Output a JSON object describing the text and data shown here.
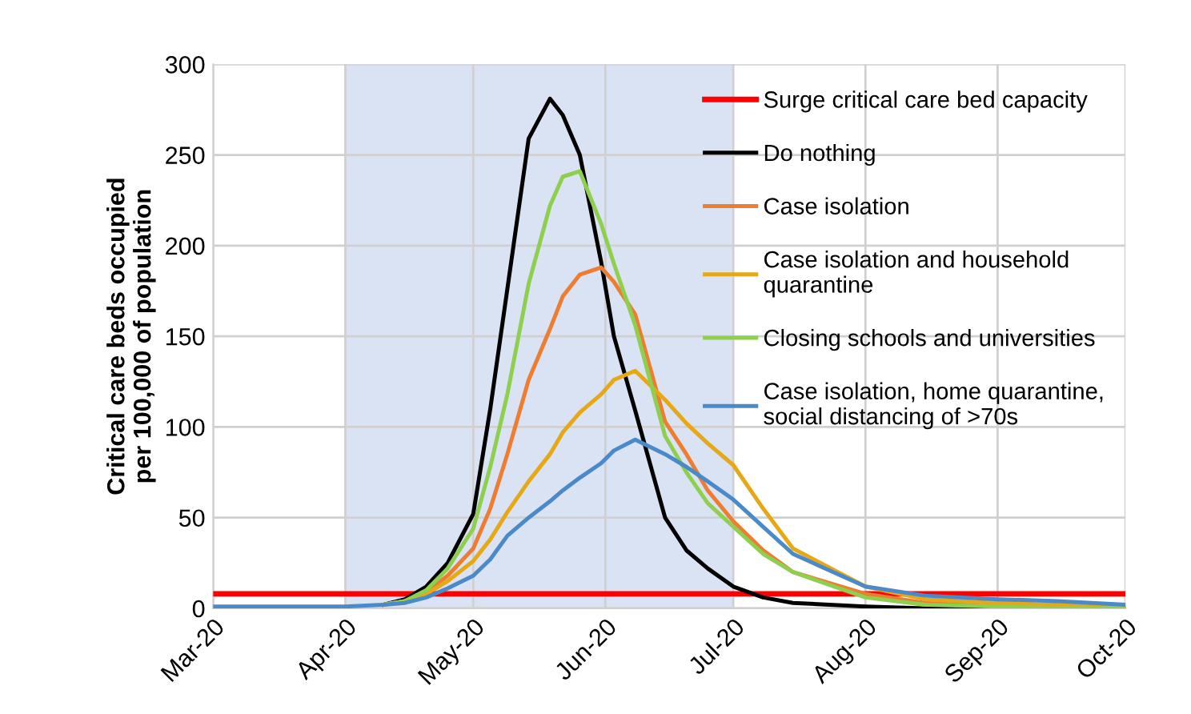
{
  "chart_data": {
    "type": "line",
    "ylabel": "Critical care beds occupied\nper 100,000 of population",
    "x": [
      "2020-03-01",
      "2020-04-01",
      "2020-04-10",
      "2020-04-15",
      "2020-04-20",
      "2020-04-25",
      "2020-05-01",
      "2020-05-05",
      "2020-05-09",
      "2020-05-14",
      "2020-05-19",
      "2020-05-22",
      "2020-05-26",
      "2020-05-31",
      "2020-06-03",
      "2020-06-08",
      "2020-06-15",
      "2020-06-20",
      "2020-06-25",
      "2020-07-01",
      "2020-07-08",
      "2020-07-15",
      "2020-08-01",
      "2020-08-15",
      "2020-09-01",
      "2020-09-15",
      "2020-10-01"
    ],
    "series": [
      {
        "name": "Do nothing",
        "color": "#000000",
        "values": [
          null,
          null,
          2,
          5,
          12,
          25,
          52,
          110,
          176,
          259,
          281,
          272,
          250,
          191,
          150,
          109,
          50,
          32,
          22,
          12,
          6,
          3,
          1,
          0,
          0,
          0,
          0
        ]
      },
      {
        "name": "Case isolation",
        "color": "#ed7d31",
        "values": [
          null,
          null,
          2,
          4,
          9,
          18,
          33,
          55,
          85,
          126,
          154,
          172,
          184,
          188,
          180,
          162,
          103,
          85,
          65,
          48,
          32,
          20,
          8,
          3,
          1,
          1,
          0
        ]
      },
      {
        "name": "Case isolation and household\nquarantine",
        "color": "#e6a817",
        "values": [
          null,
          null,
          2,
          4,
          8,
          15,
          26,
          38,
          53,
          70,
          85,
          97,
          108,
          118,
          126,
          131,
          115,
          102,
          91,
          79,
          55,
          33,
          12,
          5,
          3,
          2,
          1
        ]
      },
      {
        "name": "Closing schools and universities",
        "color": "#8fcf4f",
        "values": [
          null,
          null,
          2,
          4,
          10,
          22,
          44,
          78,
          118,
          179,
          222,
          238,
          241,
          212,
          190,
          156,
          95,
          75,
          58,
          45,
          30,
          20,
          6,
          2,
          1,
          0,
          0
        ]
      },
      {
        "name": "Case isolation, home quarantine,\nsocial distancing of >70s",
        "color": "#4a8ac9",
        "values": [
          1,
          1,
          2,
          3,
          6,
          11,
          18,
          27,
          40,
          50,
          59,
          65,
          72,
          80,
          87,
          93,
          85,
          78,
          70,
          60,
          45,
          30,
          12,
          7,
          5,
          4,
          2
        ]
      }
    ],
    "ref_lines": [
      {
        "axis": "y",
        "value": 8,
        "label": "Surge critical care bed capacity",
        "color": "#ff0000"
      }
    ],
    "bands": [
      {
        "axis": "x",
        "from": "2020-04-01",
        "to": "2020-07-01",
        "color": "#dae3f3"
      }
    ],
    "xlim": [
      "2020-03-01",
      "2020-10-01"
    ],
    "xticks": [
      {
        "value": "2020-03-01",
        "label": "Mar-20"
      },
      {
        "value": "2020-04-01",
        "label": "Apr-20"
      },
      {
        "value": "2020-05-01",
        "label": "May-20"
      },
      {
        "value": "2020-06-01",
        "label": "Jun-20"
      },
      {
        "value": "2020-07-01",
        "label": "Jul-20"
      },
      {
        "value": "2020-08-01",
        "label": "Aug-20"
      },
      {
        "value": "2020-09-01",
        "label": "Sep-20"
      },
      {
        "value": "2020-10-01",
        "label": "Oct-20"
      }
    ],
    "ylim": [
      0,
      300
    ],
    "yticks": [
      0,
      50,
      100,
      150,
      200,
      250,
      300
    ],
    "grid": true,
    "legend": "right",
    "marker": "none",
    "line_style": "solid"
  }
}
